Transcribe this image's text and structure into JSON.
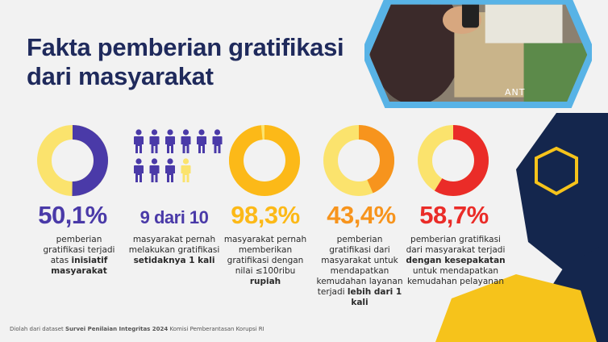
{
  "title_line1": "Fakta pemberian gratifikasi",
  "title_line2": "dari masyarakat",
  "photo_watermark": "ANT",
  "colors": {
    "title": "#1f2a5c",
    "track": "#fbe36d",
    "purple": "#4a3aa8",
    "orange": "#f7941d",
    "yellow": "#fcb918",
    "red": "#ea2c28",
    "navy": "#14264d",
    "hex_blue": "#58b3e6",
    "hex_gold": "#f6c31b"
  },
  "stats": [
    {
      "value": "50,1%",
      "fraction": 0.501,
      "color": "#4a3aa8",
      "desc_pre": "pemberian gratifikasi terjadi atas ",
      "desc_bold": "inisiatif masyarakat",
      "desc_post": ""
    },
    {
      "value": "9 dari 10",
      "count": 9,
      "of": 10,
      "color": "#4a3aa8",
      "desc_pre": "masyarakat pernah melakukan gratifikasi ",
      "desc_bold": "setidaknya 1 kali",
      "desc_post": ""
    },
    {
      "value": "98,3%",
      "fraction": 0.983,
      "color": "#fcb918",
      "desc_pre": "masyarakat pernah memberikan gratifikasi dengan nilai ≤100ribu ",
      "desc_bold": "rupiah",
      "desc_post": ""
    },
    {
      "value": "43,4%",
      "fraction": 0.434,
      "color": "#f7941d",
      "desc_pre": "pemberian gratifikasi dari masyarakat untuk mendapatkan kemudahan layanan terjadi ",
      "desc_bold": "lebih dari 1 kali",
      "desc_post": ""
    },
    {
      "value": "58,7%",
      "fraction": 0.587,
      "color": "#ea2c28",
      "desc_pre": "pemberian gratifikasi dari masyarakat terjadi ",
      "desc_bold": "dengan kesepakatan",
      "desc_post": " untuk mendapatkan kemudahan pelayanan"
    }
  ],
  "footer_pre": "Diolah dari dataset ",
  "footer_bold": "Survei Penilaian Integritas 2024",
  "footer_post": " Komisi Pemberantasan Korupsi RI"
}
